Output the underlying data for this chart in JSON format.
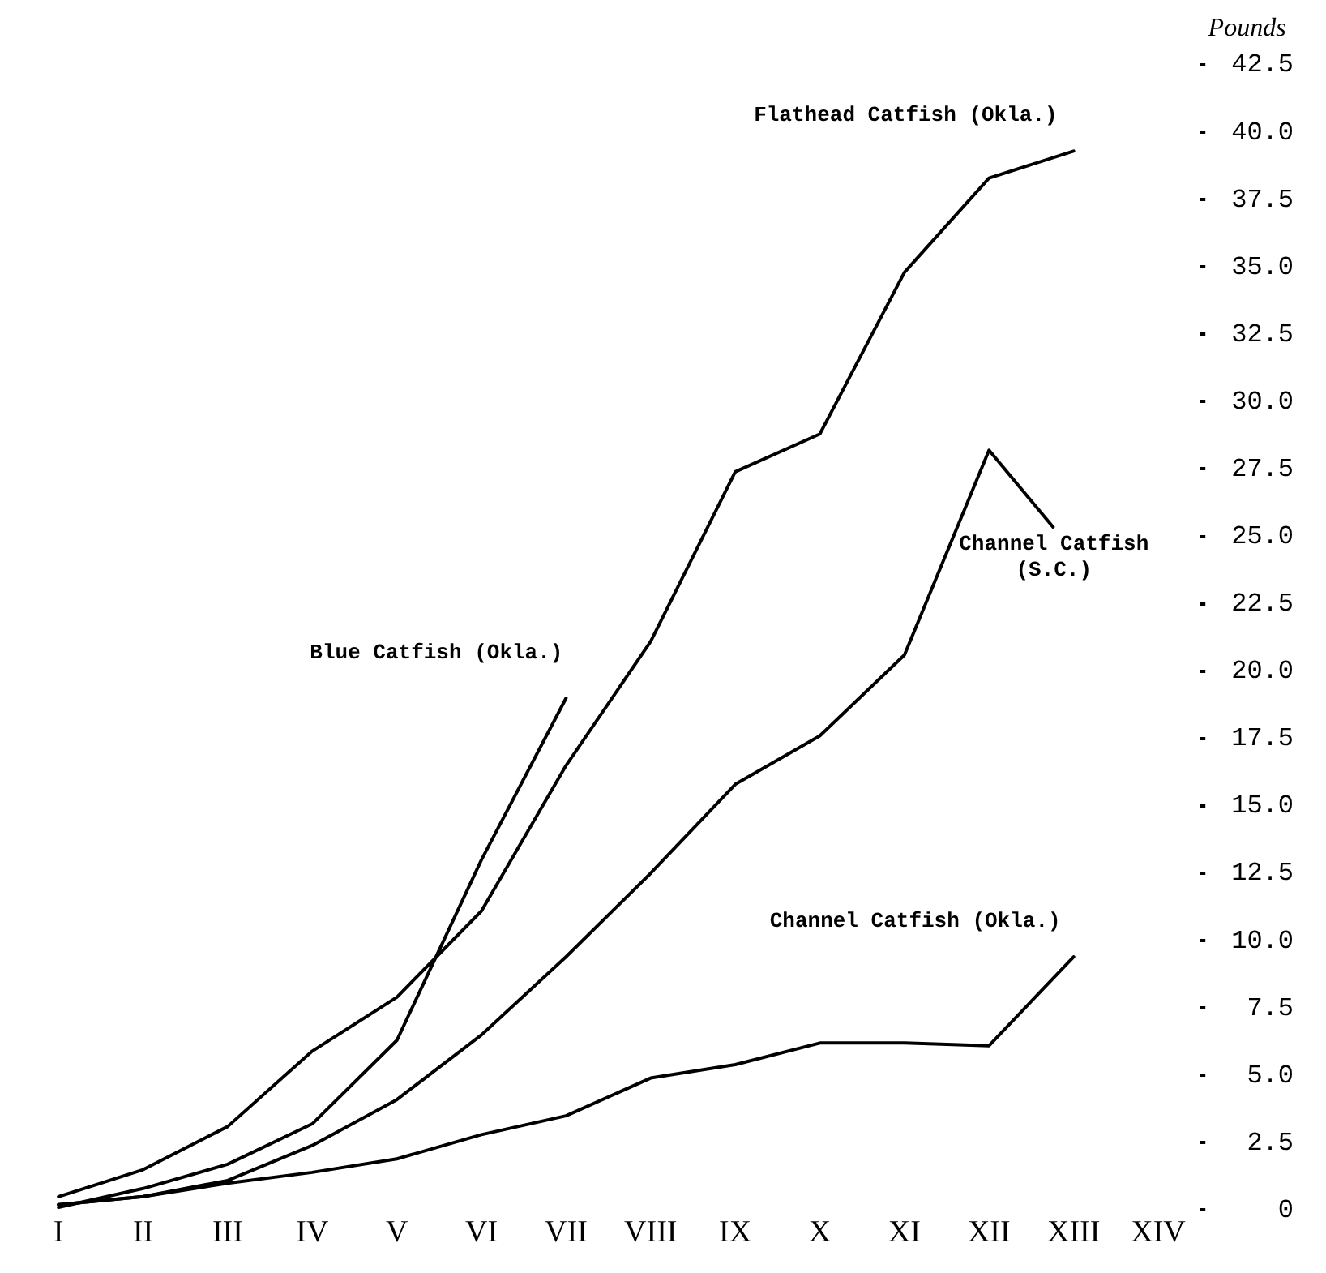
{
  "chart_data": {
    "type": "line",
    "ylabel": "Pounds",
    "categories": [
      "I",
      "II",
      "III",
      "IV",
      "V",
      "VI",
      "VII",
      "VIII",
      "IX",
      "X",
      "XI",
      "XII",
      "XIII",
      "XIV"
    ],
    "series": [
      {
        "name": "Flathead Catfish (Okla.)",
        "color": "#000000",
        "values": [
          0.5,
          1.5,
          3.1,
          5.9,
          7.9,
          11.1,
          16.5,
          21.1,
          27.4,
          28.8,
          34.8,
          38.3,
          39.3,
          null
        ]
      },
      {
        "name": "Blue Catfish (Okla.)",
        "color": "#000000",
        "values": [
          0.1,
          0.8,
          1.7,
          3.2,
          6.3,
          13.0,
          19.0,
          null,
          null,
          null,
          null,
          null,
          null,
          null
        ]
      },
      {
        "name": "Channel Catfish (S.C.)",
        "color": "#000000",
        "values": [
          0.2,
          0.5,
          1.1,
          2.4,
          4.1,
          6.5,
          9.4,
          12.5,
          15.8,
          17.6,
          20.6,
          28.2,
          null,
          null
        ]
      },
      {
        "name": "Channel Catfish (Okla.)",
        "color": "#000000",
        "values": [
          0.2,
          0.5,
          1.0,
          1.4,
          1.9,
          2.8,
          3.5,
          4.9,
          5.4,
          6.2,
          6.2,
          6.1,
          9.4,
          null
        ]
      }
    ],
    "ylim": [
      0,
      42.5
    ],
    "yticks": [
      0,
      2.5,
      {
        "value": 5,
        "label": "5.0"
      },
      7.5,
      {
        "value": 10,
        "label": "10.0"
      },
      12.5,
      {
        "value": 15,
        "label": "15.0"
      },
      17.5,
      {
        "value": 20,
        "label": "20.0"
      },
      22.5,
      {
        "value": 25,
        "label": "25.0"
      },
      27.5,
      {
        "value": 30,
        "label": "30.0"
      },
      32.5,
      {
        "value": 35,
        "label": "35.0"
      },
      37.5,
      {
        "value": 40,
        "label": "40.0"
      },
      42.5
    ],
    "grid": false,
    "legend": false,
    "marker": "none",
    "line_style": "solid"
  }
}
